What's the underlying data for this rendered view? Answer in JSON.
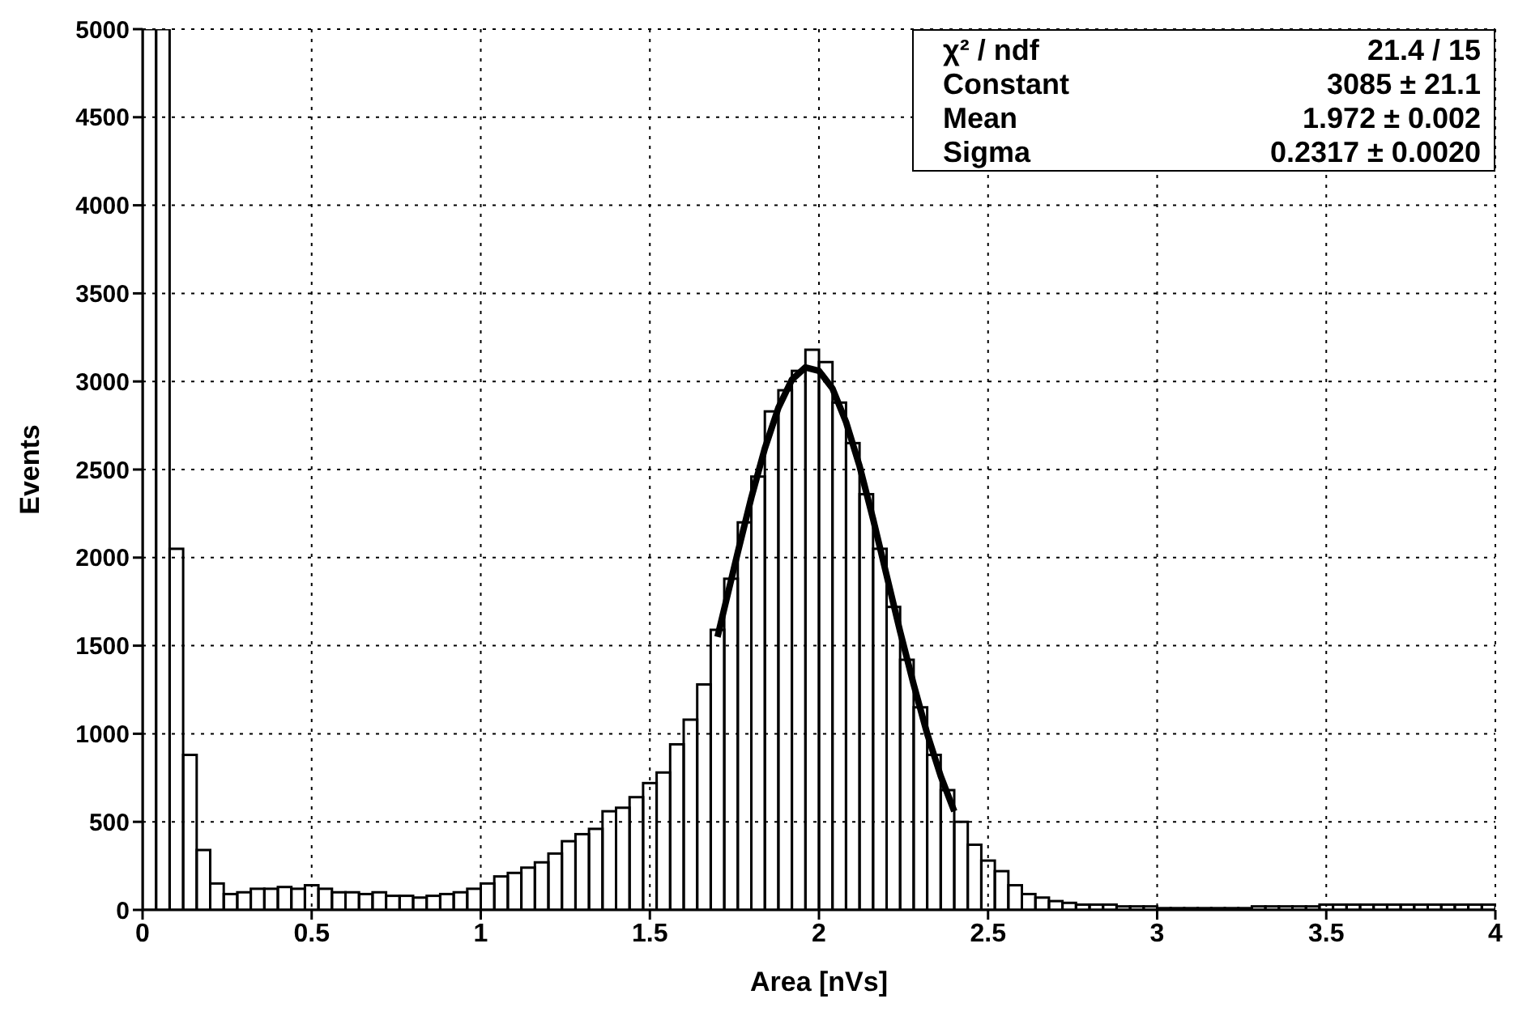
{
  "chart_data": {
    "type": "histogram",
    "xlabel": "Area [nVs]",
    "ylabel": "Events",
    "xlim": [
      0,
      4
    ],
    "xticks": [
      0,
      0.5,
      1,
      1.5,
      2,
      2.5,
      3,
      3.5,
      4
    ],
    "ylim": [
      0,
      5000
    ],
    "yticks": [
      0,
      500,
      1000,
      1500,
      2000,
      2500,
      3000,
      3500,
      4000,
      4500,
      5000
    ],
    "grid": true,
    "marker": "none",
    "line_style": "solid",
    "annotations": [
      "χ² / ndf",
      "21.4 / 15",
      "Constant",
      "3085 ± 21.1",
      "Mean",
      "1.972 ± 0.002",
      "Sigma",
      "0.2317 ± 0.0020"
    ],
    "color": "#000000",
    "bins": [
      0,
      0.04,
      0.08,
      0.12,
      0.16,
      0.2,
      0.24,
      0.28,
      0.32,
      0.36,
      0.4,
      0.44,
      0.48,
      0.52,
      0.56,
      0.6,
      0.64,
      0.68,
      0.72,
      0.76,
      0.8,
      0.84,
      0.88,
      0.92,
      0.96,
      1,
      1.04,
      1.08,
      1.12,
      1.16,
      1.2,
      1.24,
      1.28,
      1.32,
      1.36,
      1.4,
      1.44,
      1.48,
      1.52,
      1.56,
      1.6,
      1.64,
      1.68,
      1.72,
      1.76,
      1.8,
      1.84,
      1.88,
      1.92,
      1.96,
      2,
      2.04,
      2.08,
      2.12,
      2.16,
      2.2,
      2.24,
      2.28,
      2.32,
      2.36,
      2.4,
      2.44,
      2.48,
      2.52,
      2.56,
      2.6,
      2.64,
      2.68,
      2.72,
      2.76,
      2.8,
      2.84,
      2.88,
      2.92,
      2.96,
      3,
      3.04,
      3.08,
      3.12,
      3.16,
      3.2,
      3.24,
      3.28,
      3.32,
      3.36,
      3.4,
      3.44,
      3.48,
      3.52,
      3.56,
      3.6,
      3.64,
      3.68,
      3.72,
      3.76,
      3.8,
      3.84,
      3.88,
      3.92,
      3.96,
      4
    ],
    "values": [
      5000,
      5000,
      2050,
      880,
      340,
      150,
      90,
      100,
      120,
      120,
      130,
      120,
      140,
      120,
      100,
      100,
      90,
      100,
      80,
      80,
      70,
      80,
      90,
      100,
      120,
      150,
      190,
      210,
      240,
      270,
      320,
      390,
      430,
      460,
      560,
      580,
      640,
      720,
      780,
      940,
      1080,
      1280,
      1590,
      1880,
      2200,
      2460,
      2830,
      2950,
      3060,
      3180,
      3110,
      2880,
      2650,
      2360,
      2050,
      1720,
      1420,
      1150,
      880,
      680,
      500,
      370,
      280,
      220,
      140,
      90,
      70,
      50,
      40,
      30,
      30,
      30,
      20,
      20,
      20,
      10,
      10,
      10,
      10,
      10,
      10,
      10,
      20,
      20,
      20,
      20,
      20,
      30,
      30,
      30,
      30,
      30,
      30,
      30,
      30,
      30,
      30,
      30,
      30,
      30
    ],
    "series": [
      {
        "type": "line",
        "color": "#000000",
        "x": [
          1.7,
          1.72,
          1.76,
          1.8,
          1.84,
          1.88,
          1.92,
          1.96,
          2,
          2.04,
          2.08,
          2.12,
          2.16,
          2.2,
          2.24,
          2.28,
          2.32,
          2.36,
          2.4
        ],
        "values": [
          1550,
          1710,
          2030,
          2340,
          2620,
          2850,
          3010,
          3080,
          3060,
          2960,
          2770,
          2520,
          2220,
          1900,
          1580,
          1280,
          1000,
          760,
          560
        ]
      }
    ]
  }
}
